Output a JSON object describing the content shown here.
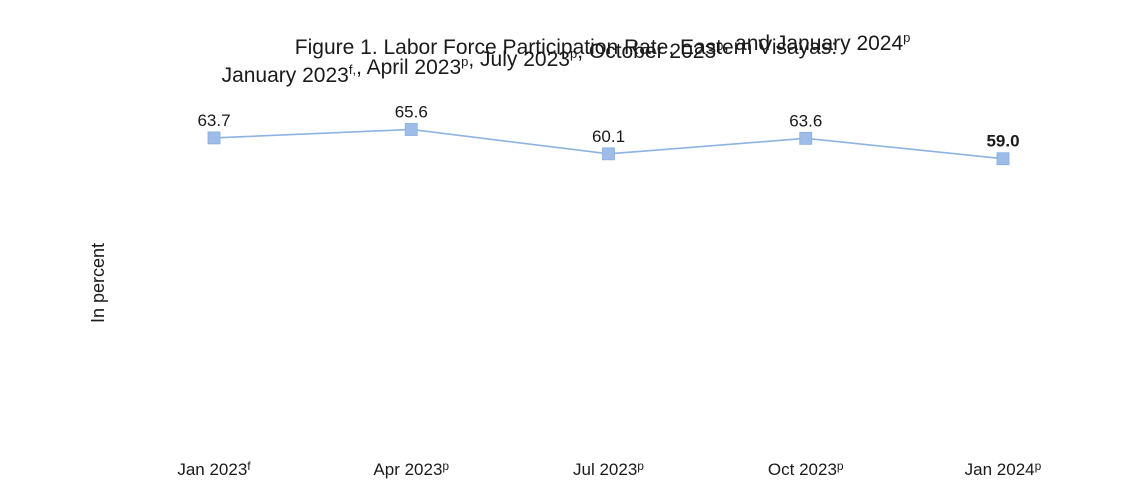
{
  "chart_data": {
    "type": "line",
    "title_line1": "Figure 1. Labor Force Participation Rate, Eastern Visayas:",
    "title_line2": [
      {
        "text": "January 2023",
        "sup": "f,"
      },
      {
        "text": ", April 2023",
        "sup": "p"
      },
      {
        "text": ", July 2023",
        "sup": "p"
      },
      {
        "text": ", October 2023",
        "sup": "p"
      },
      {
        "text": ", and January 2024",
        "sup": "p"
      }
    ],
    "ylabel": "In percent",
    "xlabel": "",
    "categories": [
      {
        "text": "Jan 2023",
        "sup": "f"
      },
      {
        "text": "Apr 2023",
        "sup": "p"
      },
      {
        "text": "Jul 2023",
        "sup": "p"
      },
      {
        "text": "Oct 2023",
        "sup": "p"
      },
      {
        "text": "Jan 2024",
        "sup": "p"
      }
    ],
    "series": [
      {
        "values": [
          63.7,
          65.6,
          60.1,
          63.6,
          59.0
        ],
        "labels": [
          "63.7",
          "65.6",
          "60.1",
          "63.6",
          "59.0"
        ],
        "bold_last_label": true,
        "color": "#8db3e2",
        "marker_color": "#9dbde8"
      }
    ],
    "ylim": [
      0,
      70
    ],
    "grid": false,
    "legend": "none"
  }
}
